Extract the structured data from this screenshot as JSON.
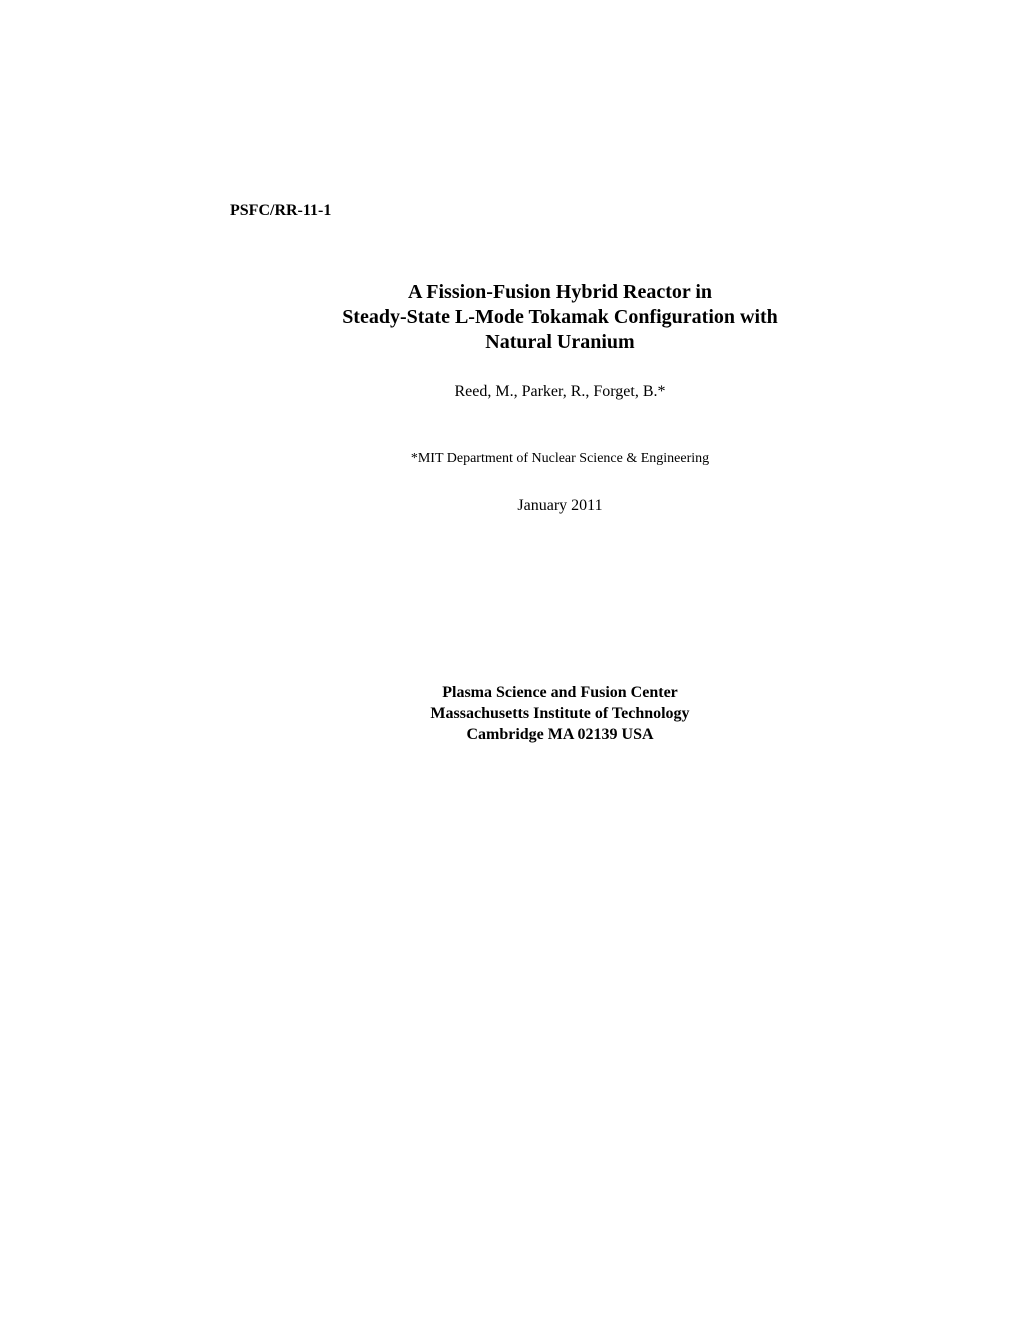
{
  "report_number": "PSFC/RR-11-1",
  "title": {
    "line1": "A Fission-Fusion Hybrid Reactor in",
    "line2": "Steady-State L-Mode Tokamak Configuration with",
    "line3": "Natural Uranium"
  },
  "authors": "Reed, M., Parker, R., Forget, B.*",
  "affiliation": "*MIT Department of Nuclear Science & Engineering",
  "date": "January 2011",
  "institution": {
    "line1": "Plasma Science and Fusion Center",
    "line2": "Massachusetts Institute of Technology",
    "line3": "Cambridge  MA  02139  USA"
  },
  "colors": {
    "background": "#ffffff",
    "text": "#000000"
  },
  "typography": {
    "font_family": "Times New Roman",
    "report_number_size": 16,
    "title_size": 20,
    "authors_size": 16,
    "affiliation_size": 14,
    "date_size": 16,
    "institution_size": 16
  }
}
